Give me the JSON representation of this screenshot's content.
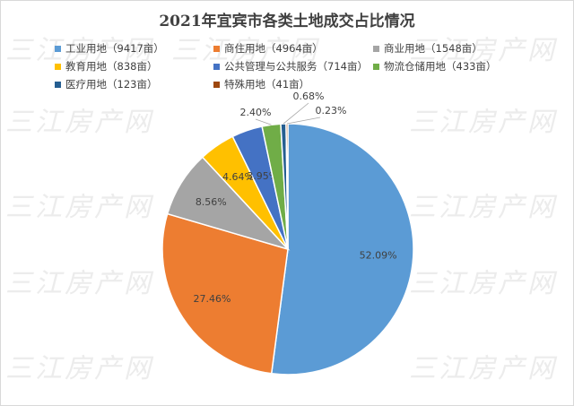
{
  "watermark_text": "三江房产网",
  "chart_data": {
    "type": "pie",
    "title": "2021年宜宾市各类土地成交占比情况",
    "legend_position": "top",
    "slices": [
      {
        "legend": "工业用地（9417亩）",
        "label": "52.09%",
        "percent": 52.09,
        "color": "#5b9bd5"
      },
      {
        "legend": "商住用地（4964亩）",
        "label": "27.46%",
        "percent": 27.46,
        "color": "#ed7d31"
      },
      {
        "legend": "商业用地（1548亩）",
        "label": "8.56%",
        "percent": 8.56,
        "color": "#a5a5a5"
      },
      {
        "legend": "教育用地（838亩）",
        "label": "4.64%",
        "percent": 4.64,
        "color": "#ffc000"
      },
      {
        "legend": "公共管理与公共服务（714亩）",
        "label": "3.95%",
        "percent": 3.95,
        "color": "#4472c4"
      },
      {
        "legend": "物流仓储用地（433亩）",
        "label": "2.40%",
        "percent": 2.4,
        "color": "#70ad47"
      },
      {
        "legend": "医疗用地（123亩）",
        "label": "0.68%",
        "percent": 0.68,
        "color": "#255e91"
      },
      {
        "legend": "特殊用地（41亩）",
        "label": "0.23%",
        "percent": 0.23,
        "color": "#9e480e"
      }
    ]
  }
}
